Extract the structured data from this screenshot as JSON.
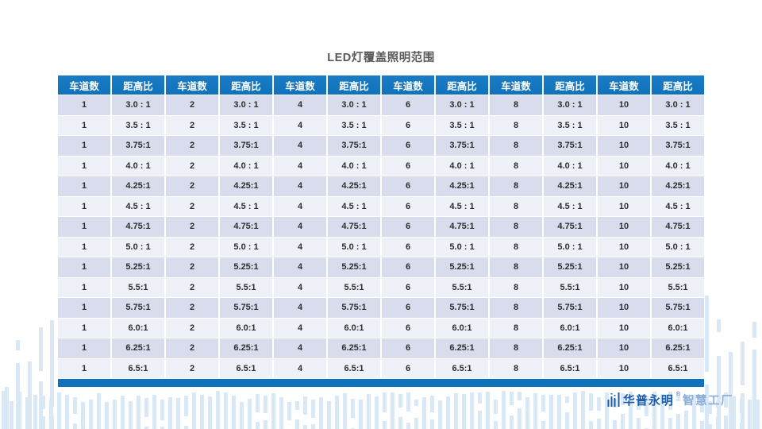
{
  "slide": {
    "title": "LED灯覆盖照明范围"
  },
  "table": {
    "lane_header": "车道数",
    "ratio_header": "距高比",
    "lanes": [
      "1",
      "2",
      "4",
      "6",
      "8",
      "10"
    ],
    "ratios": [
      "3.0 : 1",
      "3.5 : 1",
      "3.75:1",
      "4.0 : 1",
      "4.25:1",
      "4.5 : 1",
      "4.75:1",
      "5.0 : 1",
      "5.25:1",
      "5.5:1",
      "5.75:1",
      "6.0:1",
      "6.25:1",
      "6.5:1"
    ]
  },
  "logo": {
    "brand": "华普永明",
    "reg": "®",
    "suffix": "智慧工厂"
  },
  "colors": {
    "header_blue": "#1072BB",
    "header_blue_light": "#1A7CC4",
    "footer_blue": "#0E73BC",
    "row_odd": "#D8DCEC",
    "row_even": "#EFF1F8",
    "deco_bar": "#D9E8F4",
    "title_gray": "#595959",
    "logo_blue": "#1C5BA8",
    "logo_light": "#8BACD3"
  }
}
